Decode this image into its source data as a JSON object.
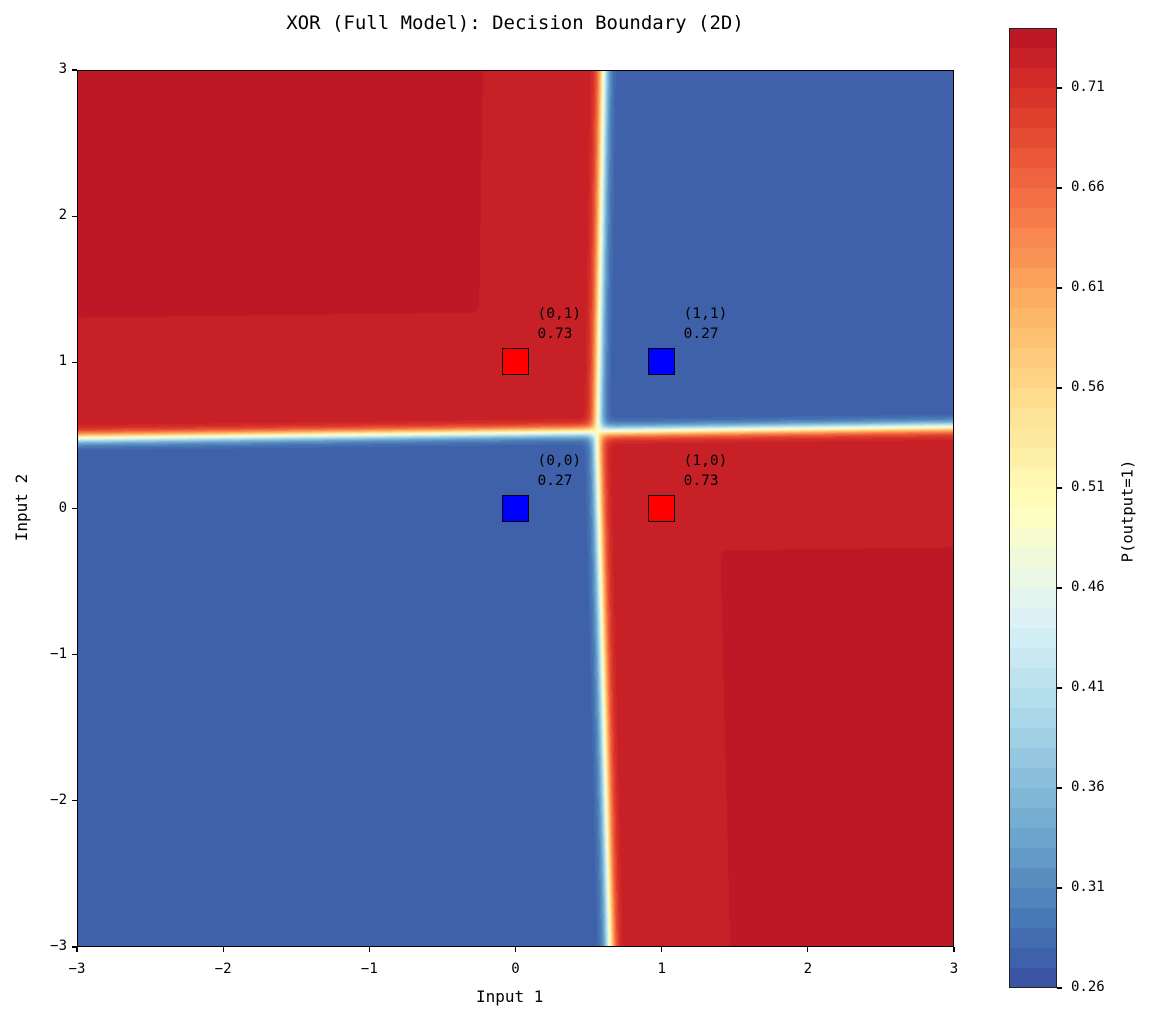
{
  "chart_data": {
    "type": "heatmap",
    "subtype": "filled-contour",
    "title": "XOR (Full Model): Decision Boundary (2D)",
    "xlabel": "Input 1",
    "ylabel": "Input 2",
    "xlim": [
      -3,
      3
    ],
    "ylim": [
      -3,
      3
    ],
    "xticks": [
      -3,
      -2,
      -1,
      0,
      1,
      2,
      3
    ],
    "yticks": [
      -3,
      -2,
      -1,
      0,
      1,
      2,
      3
    ],
    "xtick_labels": [
      "−3",
      "−2",
      "−1",
      "0",
      "1",
      "2",
      "3"
    ],
    "ytick_labels": [
      "−3",
      "−2",
      "−1",
      "0",
      "1",
      "2",
      "3"
    ],
    "colormap": "RdYlBu_r",
    "colorbar": {
      "label": "P(output=1)",
      "range": [
        0.26,
        0.74
      ],
      "ticks": [
        0.26,
        0.31,
        0.36,
        0.41,
        0.46,
        0.51,
        0.56,
        0.61,
        0.66,
        0.71
      ],
      "tick_labels": [
        "0.26",
        "0.31",
        "0.36",
        "0.41",
        "0.46",
        "0.51",
        "0.56",
        "0.61",
        "0.66",
        "0.71"
      ]
    },
    "regions": [
      {
        "name": "top-left",
        "x_range": [
          -3,
          0.55
        ],
        "y_range": [
          0.5,
          3
        ],
        "value": 0.73
      },
      {
        "name": "top-right",
        "x_range": [
          0.55,
          3
        ],
        "y_range": [
          0.5,
          3
        ],
        "value": 0.27
      },
      {
        "name": "bottom-left",
        "x_range": [
          -3,
          0.55
        ],
        "y_range": [
          -3,
          0.5
        ],
        "value": 0.27
      },
      {
        "name": "bottom-right",
        "x_range": [
          0.55,
          3
        ],
        "y_range": [
          -3,
          0.5
        ],
        "value": 0.73
      }
    ],
    "points": [
      {
        "x": 0,
        "y": 1,
        "label": "(0,1)",
        "prob": "0.73",
        "color": "#ff0000"
      },
      {
        "x": 1,
        "y": 1,
        "label": "(1,1)",
        "prob": "0.27",
        "color": "#0000ff"
      },
      {
        "x": 0,
        "y": 0,
        "label": "(0,0)",
        "prob": "0.27",
        "color": "#0000ff"
      },
      {
        "x": 1,
        "y": 0,
        "label": "(1,0)",
        "prob": "0.73",
        "color": "#ff0000"
      }
    ]
  }
}
